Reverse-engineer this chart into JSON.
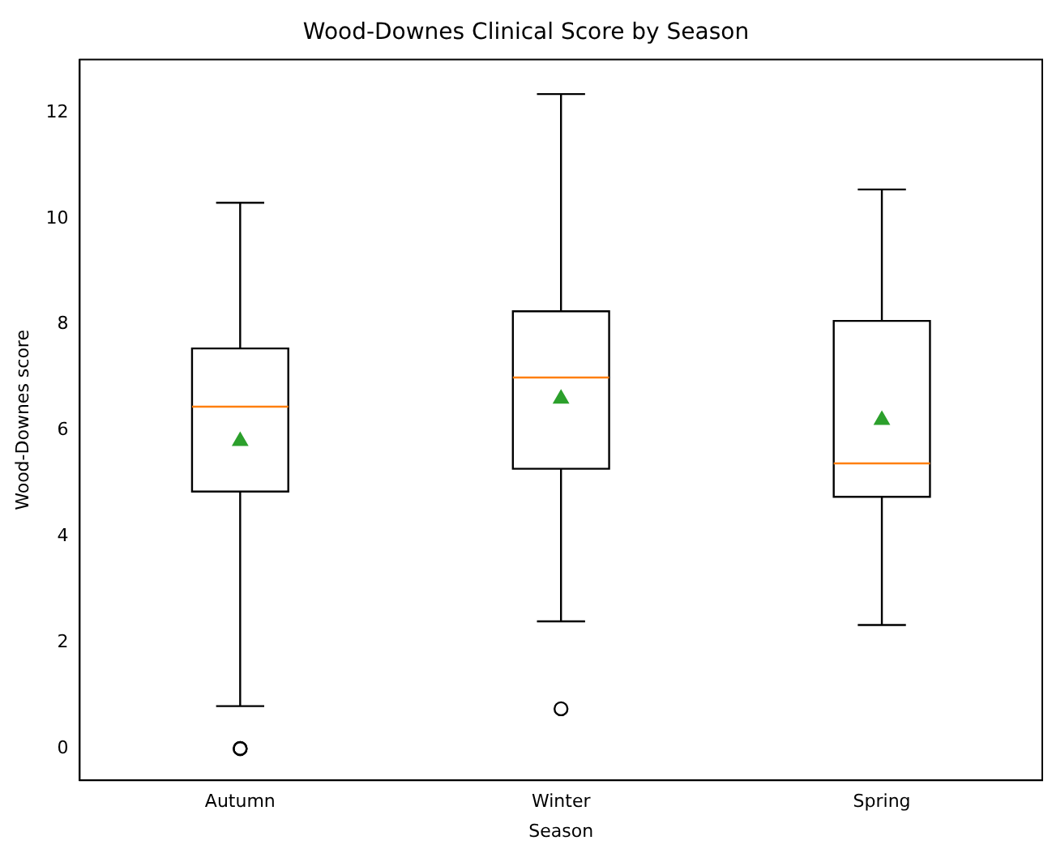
{
  "chart_data": {
    "type": "box",
    "title": "Wood-Downes Clinical Score by Season",
    "xlabel": "Season",
    "ylabel": "Wood-Downes score",
    "categories": [
      "Autumn",
      "Winter",
      "Spring"
    ],
    "boxes": [
      {
        "low": 0.8,
        "q1": 4.85,
        "median": 6.45,
        "q3": 7.55,
        "high": 10.3,
        "mean": 5.8,
        "outliers": [
          0,
          0
        ]
      },
      {
        "low": 2.4,
        "q1": 5.28,
        "median": 7.0,
        "q3": 8.25,
        "high": 12.35,
        "mean": 6.6,
        "outliers": [
          0.75
        ]
      },
      {
        "low": 2.33,
        "q1": 4.75,
        "median": 5.38,
        "q3": 8.07,
        "high": 10.55,
        "mean": 6.2
      }
    ],
    "ylim": [
      -0.6,
      13.0
    ],
    "yticks": [
      0,
      2,
      4,
      6,
      8,
      10,
      12
    ],
    "grid": false,
    "legend": false
  }
}
